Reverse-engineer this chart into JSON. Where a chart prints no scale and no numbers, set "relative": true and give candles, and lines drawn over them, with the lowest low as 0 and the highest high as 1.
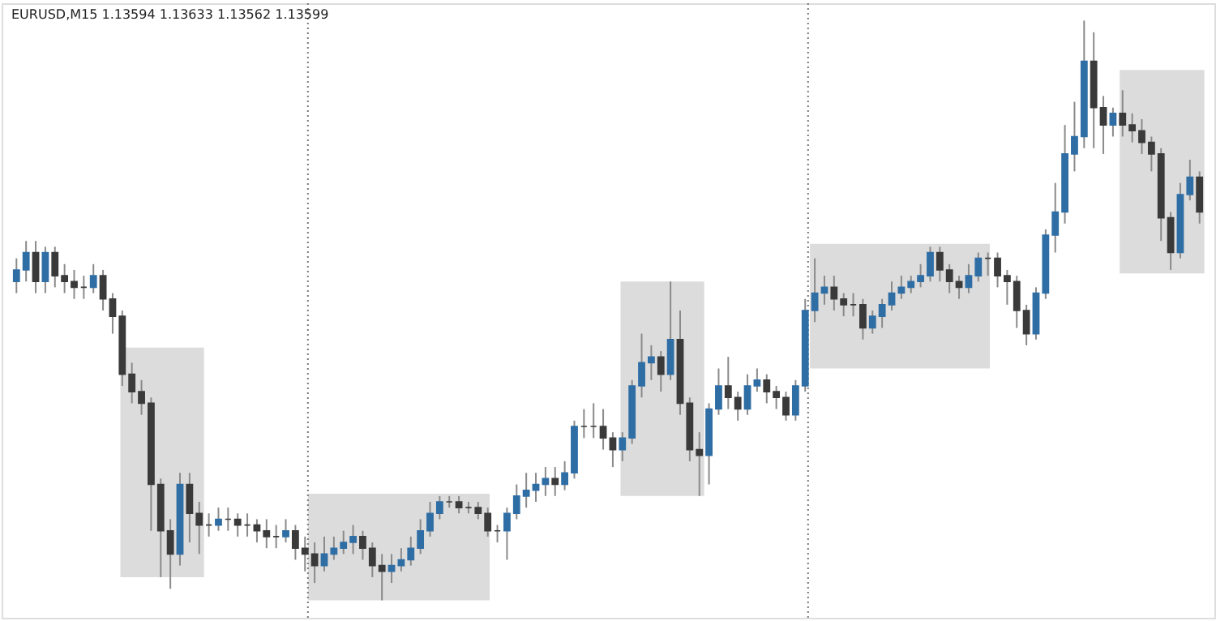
{
  "chart_data": {
    "type": "candlestick",
    "title": "EURUSD,M15  1.13594 1.13633 1.13562 1.13599",
    "relative": true,
    "bands": [
      {
        "axis": "y",
        "from": 0.04,
        "to": 0.436,
        "color": "#dcdcdc"
      },
      {
        "axis": "y",
        "from": 0.0,
        "to": 0.184,
        "color": "#dcdcdc"
      },
      {
        "axis": "y",
        "from": 0.18,
        "to": 0.55,
        "color": "#dcdcdc"
      },
      {
        "axis": "y",
        "from": 0.4,
        "to": 0.615,
        "color": "#dcdcdc"
      },
      {
        "axis": "y",
        "from": 0.564,
        "to": 0.915,
        "color": "#dcdcdc"
      }
    ],
    "categories": [
      null,
      null,
      null,
      null,
      null,
      null,
      null,
      null,
      null,
      null,
      null,
      null,
      null,
      null,
      null,
      null,
      null,
      null,
      null,
      null,
      null,
      null,
      null,
      null,
      null,
      null,
      null,
      null,
      null,
      null,
      null,
      null,
      null,
      null,
      null,
      null,
      null,
      null,
      null,
      null,
      null,
      null,
      null,
      null,
      null,
      null,
      null,
      null,
      null,
      null,
      null,
      null,
      null,
      null,
      null,
      null,
      null,
      null,
      null,
      null,
      null,
      null,
      null,
      null,
      null,
      null,
      null,
      null,
      null,
      null,
      null,
      null,
      null,
      null,
      null,
      null,
      null,
      null,
      null,
      null,
      null,
      null,
      null,
      null,
      null,
      null,
      null,
      null,
      null,
      null,
      null,
      null,
      null,
      null,
      null,
      null,
      null,
      null,
      null,
      null,
      null,
      null,
      null,
      null,
      null,
      null,
      null,
      null,
      null,
      null,
      null,
      null,
      null,
      null,
      null,
      null,
      null,
      null,
      null,
      null,
      null,
      null,
      null,
      null
    ],
    "ohlc": [
      [
        0.55,
        0.59,
        0.53,
        0.57
      ],
      [
        0.57,
        0.62,
        0.55,
        0.6
      ],
      [
        0.6,
        0.62,
        0.53,
        0.55
      ],
      [
        0.55,
        0.61,
        0.53,
        0.6
      ],
      [
        0.6,
        0.61,
        0.54,
        0.56
      ],
      [
        0.56,
        0.58,
        0.53,
        0.55
      ],
      [
        0.55,
        0.57,
        0.52,
        0.54
      ],
      [
        0.54,
        0.56,
        0.52,
        0.54
      ],
      [
        0.54,
        0.58,
        0.53,
        0.56
      ],
      [
        0.56,
        0.57,
        0.5,
        0.52
      ],
      [
        0.52,
        0.53,
        0.46,
        0.49
      ],
      [
        0.49,
        0.5,
        0.37,
        0.39
      ],
      [
        0.39,
        0.41,
        0.34,
        0.36
      ],
      [
        0.36,
        0.38,
        0.32,
        0.34
      ],
      [
        0.34,
        0.35,
        0.12,
        0.2
      ],
      [
        0.2,
        0.21,
        0.04,
        0.12
      ],
      [
        0.12,
        0.14,
        0.02,
        0.08
      ],
      [
        0.08,
        0.22,
        0.06,
        0.2
      ],
      [
        0.2,
        0.22,
        0.1,
        0.15
      ],
      [
        0.15,
        0.17,
        0.08,
        0.13
      ],
      [
        0.13,
        0.15,
        0.11,
        0.13
      ],
      [
        0.13,
        0.16,
        0.12,
        0.14
      ],
      [
        0.14,
        0.16,
        0.12,
        0.14
      ],
      [
        0.14,
        0.15,
        0.11,
        0.13
      ],
      [
        0.13,
        0.15,
        0.11,
        0.13
      ],
      [
        0.13,
        0.14,
        0.1,
        0.12
      ],
      [
        0.12,
        0.14,
        0.09,
        0.11
      ],
      [
        0.11,
        0.13,
        0.09,
        0.11
      ],
      [
        0.11,
        0.14,
        0.1,
        0.12
      ],
      [
        0.12,
        0.13,
        0.07,
        0.09
      ],
      [
        0.09,
        0.11,
        0.05,
        0.08
      ],
      [
        0.08,
        0.1,
        0.03,
        0.06
      ],
      [
        0.06,
        0.11,
        0.05,
        0.08
      ],
      [
        0.08,
        0.11,
        0.07,
        0.09
      ],
      [
        0.09,
        0.12,
        0.08,
        0.1
      ],
      [
        0.1,
        0.13,
        0.08,
        0.11
      ],
      [
        0.11,
        0.12,
        0.07,
        0.09
      ],
      [
        0.09,
        0.1,
        0.04,
        0.06
      ],
      [
        0.06,
        0.08,
        0.0,
        0.05
      ],
      [
        0.05,
        0.08,
        0.03,
        0.06
      ],
      [
        0.06,
        0.09,
        0.05,
        0.07
      ],
      [
        0.07,
        0.11,
        0.06,
        0.09
      ],
      [
        0.09,
        0.14,
        0.08,
        0.12
      ],
      [
        0.12,
        0.17,
        0.11,
        0.15
      ],
      [
        0.15,
        0.18,
        0.14,
        0.17
      ],
      [
        0.17,
        0.18,
        0.16,
        0.17
      ],
      [
        0.17,
        0.18,
        0.15,
        0.16
      ],
      [
        0.16,
        0.17,
        0.15,
        0.16
      ],
      [
        0.16,
        0.17,
        0.14,
        0.15
      ],
      [
        0.15,
        0.16,
        0.11,
        0.12
      ],
      [
        0.12,
        0.13,
        0.1,
        0.12
      ],
      [
        0.12,
        0.16,
        0.07,
        0.15
      ],
      [
        0.15,
        0.2,
        0.14,
        0.18
      ],
      [
        0.18,
        0.22,
        0.16,
        0.19
      ],
      [
        0.19,
        0.22,
        0.17,
        0.2
      ],
      [
        0.2,
        0.23,
        0.18,
        0.21
      ],
      [
        0.21,
        0.23,
        0.18,
        0.2
      ],
      [
        0.2,
        0.24,
        0.19,
        0.22
      ],
      [
        0.22,
        0.31,
        0.21,
        0.3
      ],
      [
        0.3,
        0.33,
        0.28,
        0.3
      ],
      [
        0.3,
        0.34,
        0.28,
        0.3
      ],
      [
        0.3,
        0.33,
        0.26,
        0.28
      ],
      [
        0.28,
        0.29,
        0.23,
        0.26
      ],
      [
        0.26,
        0.29,
        0.24,
        0.28
      ],
      [
        0.28,
        0.38,
        0.27,
        0.37
      ],
      [
        0.37,
        0.46,
        0.35,
        0.41
      ],
      [
        0.41,
        0.44,
        0.38,
        0.42
      ],
      [
        0.42,
        0.43,
        0.36,
        0.39
      ],
      [
        0.39,
        0.55,
        0.38,
        0.45
      ],
      [
        0.45,
        0.5,
        0.32,
        0.34
      ],
      [
        0.34,
        0.35,
        0.24,
        0.26
      ],
      [
        0.26,
        0.29,
        0.18,
        0.25
      ],
      [
        0.25,
        0.34,
        0.2,
        0.33
      ],
      [
        0.33,
        0.4,
        0.32,
        0.37
      ],
      [
        0.37,
        0.42,
        0.33,
        0.35
      ],
      [
        0.35,
        0.36,
        0.31,
        0.33
      ],
      [
        0.33,
        0.39,
        0.32,
        0.37
      ],
      [
        0.37,
        0.4,
        0.36,
        0.38
      ],
      [
        0.38,
        0.39,
        0.34,
        0.36
      ],
      [
        0.36,
        0.37,
        0.33,
        0.35
      ],
      [
        0.35,
        0.36,
        0.31,
        0.32
      ],
      [
        0.32,
        0.38,
        0.31,
        0.37
      ],
      [
        0.37,
        0.52,
        0.36,
        0.5
      ],
      [
        0.5,
        0.59,
        0.48,
        0.53
      ],
      [
        0.53,
        0.56,
        0.51,
        0.54
      ],
      [
        0.54,
        0.56,
        0.5,
        0.52
      ],
      [
        0.52,
        0.53,
        0.49,
        0.51
      ],
      [
        0.51,
        0.53,
        0.49,
        0.51
      ],
      [
        0.51,
        0.52,
        0.45,
        0.47
      ],
      [
        0.47,
        0.5,
        0.46,
        0.49
      ],
      [
        0.49,
        0.52,
        0.47,
        0.51
      ],
      [
        0.51,
        0.55,
        0.5,
        0.53
      ],
      [
        0.53,
        0.56,
        0.52,
        0.54
      ],
      [
        0.54,
        0.56,
        0.53,
        0.55
      ],
      [
        0.55,
        0.58,
        0.54,
        0.56
      ],
      [
        0.56,
        0.61,
        0.55,
        0.6
      ],
      [
        0.6,
        0.61,
        0.55,
        0.57
      ],
      [
        0.57,
        0.58,
        0.53,
        0.55
      ],
      [
        0.55,
        0.56,
        0.52,
        0.54
      ],
      [
        0.54,
        0.58,
        0.53,
        0.56
      ],
      [
        0.56,
        0.6,
        0.55,
        0.59
      ],
      [
        0.59,
        0.6,
        0.56,
        0.59
      ],
      [
        0.59,
        0.6,
        0.54,
        0.56
      ],
      [
        0.56,
        0.57,
        0.51,
        0.55
      ],
      [
        0.55,
        0.56,
        0.47,
        0.5
      ],
      [
        0.5,
        0.51,
        0.44,
        0.46
      ],
      [
        0.46,
        0.54,
        0.45,
        0.53
      ],
      [
        0.53,
        0.64,
        0.52,
        0.63
      ],
      [
        0.63,
        0.72,
        0.6,
        0.67
      ],
      [
        0.67,
        0.82,
        0.65,
        0.77
      ],
      [
        0.77,
        0.86,
        0.74,
        0.8
      ],
      [
        0.8,
        1.0,
        0.78,
        0.93
      ],
      [
        0.93,
        0.98,
        0.78,
        0.85
      ],
      [
        0.85,
        0.87,
        0.77,
        0.82
      ],
      [
        0.82,
        0.85,
        0.8,
        0.84
      ],
      [
        0.84,
        0.88,
        0.8,
        0.82
      ],
      [
        0.82,
        0.84,
        0.79,
        0.81
      ],
      [
        0.81,
        0.83,
        0.77,
        0.79
      ],
      [
        0.79,
        0.8,
        0.74,
        0.77
      ],
      [
        0.77,
        0.78,
        0.62,
        0.66
      ],
      [
        0.66,
        0.67,
        0.57,
        0.6
      ],
      [
        0.6,
        0.72,
        0.59,
        0.7
      ],
      [
        0.7,
        0.76,
        0.69,
        0.73
      ],
      [
        0.73,
        0.74,
        0.65,
        0.67
      ]
    ],
    "colors": [
      "#2f6ea5",
      "#2f6ea5",
      "#3a3a3a",
      "#2f6ea5",
      "#3a3a3a",
      "#3a3a3a",
      "#3a3a3a",
      "#3a3a3a",
      "#2f6ea5",
      "#3a3a3a",
      "#3a3a3a",
      "#3a3a3a",
      "#3a3a3a",
      "#3a3a3a",
      "#3a3a3a",
      "#3a3a3a",
      "#3a3a3a",
      "#2f6ea5",
      "#3a3a3a",
      "#3a3a3a",
      "#3a3a3a",
      "#2f6ea5",
      "#3a3a3a",
      "#3a3a3a",
      "#3a3a3a",
      "#3a3a3a",
      "#3a3a3a",
      "#3a3a3a",
      "#2f6ea5",
      "#3a3a3a",
      "#3a3a3a",
      "#3a3a3a",
      "#2f6ea5",
      "#2f6ea5",
      "#2f6ea5",
      "#2f6ea5",
      "#3a3a3a",
      "#3a3a3a",
      "#3a3a3a",
      "#2f6ea5",
      "#2f6ea5",
      "#2f6ea5",
      "#2f6ea5",
      "#2f6ea5",
      "#2f6ea5",
      "#3a3a3a",
      "#3a3a3a",
      "#3a3a3a",
      "#3a3a3a",
      "#3a3a3a",
      "#3a3a3a",
      "#2f6ea5",
      "#2f6ea5",
      "#2f6ea5",
      "#2f6ea5",
      "#2f6ea5",
      "#3a3a3a",
      "#2f6ea5",
      "#2f6ea5",
      "#3a3a3a",
      "#3a3a3a",
      "#3a3a3a",
      "#3a3a3a",
      "#2f6ea5",
      "#2f6ea5",
      "#2f6ea5",
      "#2f6ea5",
      "#3a3a3a",
      "#2f6ea5",
      "#3a3a3a",
      "#3a3a3a",
      "#3a3a3a",
      "#2f6ea5",
      "#2f6ea5",
      "#3a3a3a",
      "#3a3a3a",
      "#2f6ea5",
      "#2f6ea5",
      "#3a3a3a",
      "#3a3a3a",
      "#3a3a3a",
      "#2f6ea5",
      "#2f6ea5",
      "#2f6ea5",
      "#2f6ea5",
      "#3a3a3a",
      "#3a3a3a",
      "#3a3a3a",
      "#3a3a3a",
      "#2f6ea5",
      "#2f6ea5",
      "#2f6ea5",
      "#2f6ea5",
      "#2f6ea5",
      "#2f6ea5",
      "#2f6ea5",
      "#3a3a3a",
      "#3a3a3a",
      "#3a3a3a",
      "#2f6ea5",
      "#2f6ea5",
      "#3a3a3a",
      "#3a3a3a",
      "#3a3a3a",
      "#3a3a3a",
      "#3a3a3a",
      "#2f6ea5",
      "#2f6ea5",
      "#2f6ea5",
      "#2f6ea5",
      "#2f6ea5",
      "#2f6ea5",
      "#3a3a3a",
      "#3a3a3a",
      "#2f6ea5",
      "#3a3a3a",
      "#3a3a3a",
      "#3a3a3a",
      "#3a3a3a",
      "#3a3a3a",
      "#3a3a3a",
      "#2f6ea5",
      "#2f6ea5",
      "#3a3a3a"
    ]
  }
}
